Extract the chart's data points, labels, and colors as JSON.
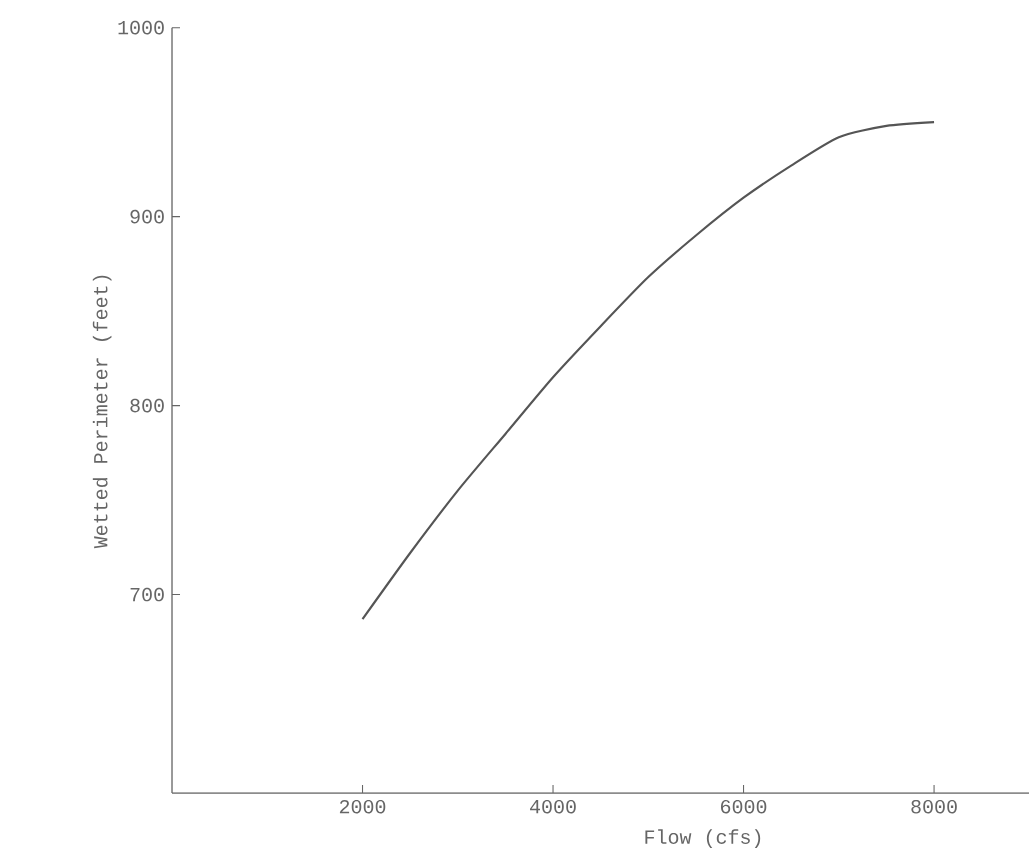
{
  "chart_data": {
    "type": "line",
    "xlabel": "Flow (cfs)",
    "ylabel": "Wetted Perimeter (feet)",
    "x": [
      2000,
      2500,
      3000,
      3500,
      4000,
      4500,
      5000,
      5500,
      6000,
      6500,
      7000,
      7500,
      8000
    ],
    "series": [
      {
        "color": "#555555",
        "values": [
          687,
          722,
          755,
          785,
          815,
          842,
          868,
          890,
          910,
          927,
          942,
          948,
          950
        ]
      }
    ],
    "xlim": [
      0,
      9000
    ],
    "ylim": [
      595,
      1000
    ],
    "xticks": [
      2000,
      4000,
      6000,
      8000
    ],
    "yticks": [
      700,
      800,
      900,
      1000
    ],
    "marker": "none",
    "line_style": "solid"
  }
}
